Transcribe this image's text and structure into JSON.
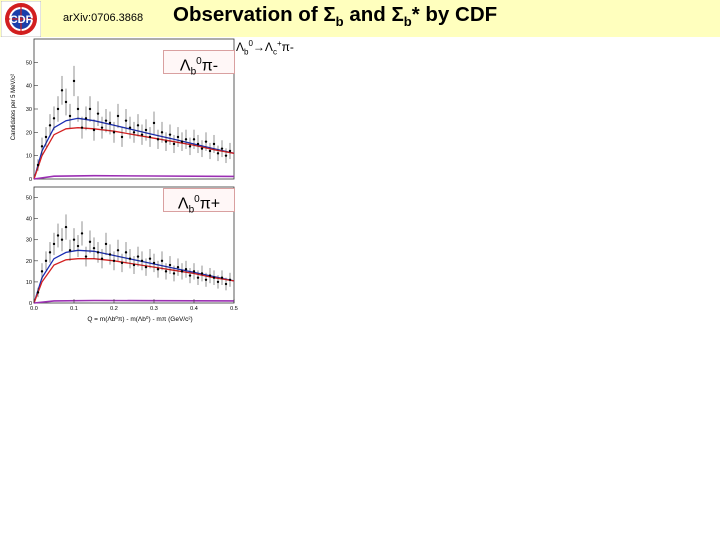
{
  "header": {
    "logo_text": "CDF",
    "arxiv": "arXiv:0706.3868",
    "title_prefix": "Observation of Σ",
    "title_sub1": "b",
    "title_mid": " and Σ",
    "title_sub2": "b",
    "title_suffix": "* by CDF",
    "banner_color": "#ffffbe"
  },
  "decay": {
    "lam1": "Λ",
    "b": "b",
    "zero": "0",
    "arrow": "→",
    "lam2": "Λ",
    "c": "c",
    "plus": "+",
    "pi": "π-"
  },
  "labels": {
    "panel_top": {
      "base": "Λ",
      "sub": "b",
      "sup": "0",
      "tail": "π-"
    },
    "panel_bottom": {
      "base": "Λ",
      "sub": "b",
      "sup": "0",
      "tail": "π+"
    }
  },
  "axes": {
    "ylabel": "Candidates per 5 MeV/c²",
    "xlabel": "Q = m(Λb⁰π) - m(Λb⁰) - mπ  (GeV/c²)",
    "x_ticks": [
      "0.0",
      "0.1",
      "0.2",
      "0.3",
      "0.4",
      "0.5"
    ],
    "y_ticks_top": [
      "0",
      "10",
      "20",
      "30",
      "40",
      "50"
    ],
    "y_ticks_bottom": [
      "0",
      "10",
      "20",
      "30",
      "40",
      "50"
    ]
  },
  "chart_data": [
    {
      "type": "scatter",
      "panel": "Λb0π-",
      "xlim": [
        0,
        0.5
      ],
      "ylim": [
        0,
        60
      ],
      "x": [
        0.01,
        0.02,
        0.03,
        0.04,
        0.05,
        0.06,
        0.07,
        0.08,
        0.09,
        0.1,
        0.11,
        0.12,
        0.13,
        0.14,
        0.15,
        0.16,
        0.17,
        0.18,
        0.19,
        0.2,
        0.21,
        0.22,
        0.23,
        0.24,
        0.25,
        0.26,
        0.27,
        0.28,
        0.29,
        0.3,
        0.31,
        0.32,
        0.33,
        0.34,
        0.35,
        0.36,
        0.37,
        0.38,
        0.39,
        0.4,
        0.41,
        0.42,
        0.43,
        0.44,
        0.45,
        0.46,
        0.47,
        0.48,
        0.49
      ],
      "y": [
        6,
        14,
        18,
        23,
        26,
        30,
        38,
        33,
        27,
        42,
        30,
        22,
        26,
        30,
        21,
        28,
        22,
        25,
        24,
        20,
        27,
        18,
        25,
        22,
        20,
        23,
        19,
        21,
        18,
        24,
        17,
        20,
        16,
        19,
        15,
        18,
        16,
        17,
        14,
        17,
        15,
        13,
        16,
        12,
        15,
        11,
        13,
        10,
        12
      ],
      "series": [
        {
          "name": "",
          "color": "#1a2db3",
          "curve": [
            [
              0.0,
              0
            ],
            [
              0.02,
              12
            ],
            [
              0.05,
              22
            ],
            [
              0.08,
              25
            ],
            [
              0.11,
              26
            ],
            [
              0.15,
              25
            ],
            [
              0.2,
              23
            ],
            [
              0.25,
              21
            ],
            [
              0.3,
              19
            ],
            [
              0.35,
              17
            ],
            [
              0.4,
              15
            ],
            [
              0.45,
              13
            ],
            [
              0.5,
              11
            ]
          ]
        },
        {
          "name": "",
          "color": "#d42020",
          "curve": [
            [
              0.0,
              0
            ],
            [
              0.02,
              10
            ],
            [
              0.05,
              19
            ],
            [
              0.08,
              21.5
            ],
            [
              0.11,
              22
            ],
            [
              0.15,
              21.5
            ],
            [
              0.2,
              20.5
            ],
            [
              0.25,
              19
            ],
            [
              0.3,
              17.5
            ],
            [
              0.35,
              16
            ],
            [
              0.4,
              14.5
            ],
            [
              0.45,
              12.5
            ],
            [
              0.5,
              11
            ]
          ]
        },
        {
          "name": "",
          "color": "#9b2fb3",
          "curve": [
            [
              0.0,
              0
            ],
            [
              0.05,
              1.2
            ],
            [
              0.15,
              1.4
            ],
            [
              0.3,
              1.3
            ],
            [
              0.5,
              1.1
            ]
          ]
        }
      ]
    },
    {
      "type": "scatter",
      "panel": "Λb0π+",
      "xlim": [
        0,
        0.5
      ],
      "ylim": [
        0,
        55
      ],
      "x": [
        0.01,
        0.02,
        0.03,
        0.04,
        0.05,
        0.06,
        0.07,
        0.08,
        0.09,
        0.1,
        0.11,
        0.12,
        0.13,
        0.14,
        0.15,
        0.16,
        0.17,
        0.18,
        0.19,
        0.2,
        0.21,
        0.22,
        0.23,
        0.24,
        0.25,
        0.26,
        0.27,
        0.28,
        0.29,
        0.3,
        0.31,
        0.32,
        0.33,
        0.34,
        0.35,
        0.36,
        0.37,
        0.38,
        0.39,
        0.4,
        0.41,
        0.42,
        0.43,
        0.44,
        0.45,
        0.46,
        0.47,
        0.48,
        0.49
      ],
      "y": [
        5,
        15,
        20,
        24,
        28,
        32,
        30,
        36,
        25,
        30,
        27,
        33,
        22,
        29,
        26,
        24,
        21,
        28,
        23,
        20,
        25,
        19,
        24,
        21,
        18,
        22,
        20,
        17,
        21,
        19,
        16,
        20,
        15,
        18,
        14,
        17,
        15,
        16,
        13,
        15,
        12,
        14,
        11,
        13,
        12,
        10,
        12,
        9,
        11
      ],
      "series": [
        {
          "name": "",
          "color": "#1a2db3",
          "curve": [
            [
              0.0,
              0
            ],
            [
              0.02,
              12
            ],
            [
              0.05,
              21
            ],
            [
              0.08,
              24
            ],
            [
              0.11,
              25
            ],
            [
              0.15,
              24.5
            ],
            [
              0.2,
              22.5
            ],
            [
              0.25,
              20.5
            ],
            [
              0.3,
              18.5
            ],
            [
              0.35,
              16.5
            ],
            [
              0.4,
              14.5
            ],
            [
              0.45,
              12.5
            ],
            [
              0.5,
              10.5
            ]
          ]
        },
        {
          "name": "",
          "color": "#d42020",
          "curve": [
            [
              0.0,
              0
            ],
            [
              0.02,
              10
            ],
            [
              0.05,
              18
            ],
            [
              0.08,
              20.5
            ],
            [
              0.11,
              21
            ],
            [
              0.15,
              21
            ],
            [
              0.2,
              20
            ],
            [
              0.25,
              18.5
            ],
            [
              0.3,
              17
            ],
            [
              0.35,
              15.5
            ],
            [
              0.4,
              14
            ],
            [
              0.45,
              12
            ],
            [
              0.5,
              10.5
            ]
          ]
        },
        {
          "name": "",
          "color": "#9b2fb3",
          "curve": [
            [
              0.0,
              0
            ],
            [
              0.05,
              1.0
            ],
            [
              0.15,
              1.2
            ],
            [
              0.3,
              1.1
            ],
            [
              0.5,
              1.0
            ]
          ]
        }
      ]
    }
  ]
}
